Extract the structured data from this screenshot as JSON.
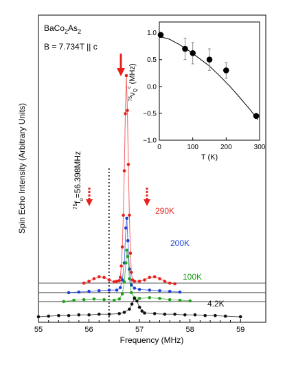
{
  "chart_data": [
    {
      "type": "scatter",
      "xlabel": "Frequency (MHz)",
      "ylabel": "Spin  Echo Intensity (Arbitrary  Units)",
      "xlim": [
        55,
        59.5
      ],
      "xticks": [
        "55",
        "56",
        "57",
        "58",
        "59"
      ],
      "sample": {
        "compound": "BaCo",
        "sub1": "2",
        "mid": "As",
        "sub2": "2"
      },
      "field_label": "B = 7.734T || c",
      "ref_line": {
        "x": 56.398,
        "sup": "75",
        "main": "f",
        "sub": "o",
        "rest": "=56.398MHz"
      },
      "series": [
        {
          "name": "290K",
          "color": "#e8201c",
          "baseline": 0.53,
          "points": [
            [
              55.9,
              0.53
            ],
            [
              56.0,
              0.56
            ],
            [
              56.1,
              0.6
            ],
            [
              56.2,
              0.63
            ],
            [
              56.3,
              0.62
            ],
            [
              56.4,
              0.58
            ],
            [
              56.5,
              0.55
            ],
            [
              56.55,
              0.56
            ],
            [
              56.6,
              0.57
            ],
            [
              56.62,
              0.62
            ],
            [
              56.64,
              0.8
            ],
            [
              56.66,
              1.1
            ],
            [
              56.68,
              1.6
            ],
            [
              56.7,
              2.3
            ],
            [
              56.72,
              3.2
            ],
            [
              56.74,
              3.8
            ],
            [
              56.76,
              3.25
            ],
            [
              56.78,
              2.4
            ],
            [
              56.8,
              1.6
            ],
            [
              56.82,
              1.0
            ],
            [
              56.84,
              0.7
            ],
            [
              56.86,
              0.58
            ],
            [
              56.9,
              0.56
            ],
            [
              57.0,
              0.56
            ],
            [
              57.1,
              0.58
            ],
            [
              57.2,
              0.62
            ],
            [
              57.3,
              0.63
            ],
            [
              57.4,
              0.6
            ],
            [
              57.5,
              0.56
            ],
            [
              57.6,
              0.53
            ],
            [
              57.7,
              0.52
            ]
          ]
        },
        {
          "name": "200K",
          "color": "#1a3fd8",
          "baseline": 0.38,
          "points": [
            [
              55.6,
              0.38
            ],
            [
              55.8,
              0.39
            ],
            [
              56.0,
              0.4
            ],
            [
              56.2,
              0.41
            ],
            [
              56.4,
              0.42
            ],
            [
              56.55,
              0.42
            ],
            [
              56.62,
              0.46
            ],
            [
              56.66,
              0.58
            ],
            [
              56.7,
              0.85
            ],
            [
              56.73,
              1.4
            ],
            [
              56.75,
              1.55
            ],
            [
              56.77,
              1.2
            ],
            [
              56.8,
              0.75
            ],
            [
              56.84,
              0.5
            ],
            [
              56.9,
              0.45
            ],
            [
              57.0,
              0.43
            ],
            [
              57.2,
              0.42
            ],
            [
              57.4,
              0.41
            ],
            [
              57.6,
              0.4
            ],
            [
              57.8,
              0.39
            ]
          ]
        },
        {
          "name": "100K",
          "color": "#22a11c",
          "baseline": 0.24,
          "points": [
            [
              55.5,
              0.24
            ],
            [
              55.7,
              0.26
            ],
            [
              55.9,
              0.27
            ],
            [
              56.1,
              0.28
            ],
            [
              56.3,
              0.27
            ],
            [
              56.5,
              0.26
            ],
            [
              56.6,
              0.28
            ],
            [
              56.66,
              0.36
            ],
            [
              56.7,
              0.55
            ],
            [
              56.73,
              0.85
            ],
            [
              56.75,
              1.05
            ],
            [
              56.77,
              0.95
            ],
            [
              56.8,
              0.6
            ],
            [
              56.84,
              0.38
            ],
            [
              56.9,
              0.3
            ],
            [
              57.0,
              0.29
            ],
            [
              57.2,
              0.3
            ],
            [
              57.4,
              0.29
            ],
            [
              57.6,
              0.27
            ],
            [
              57.8,
              0.26
            ],
            [
              58.0,
              0.25
            ]
          ]
        },
        {
          "name": "4.2K",
          "color": "#111111",
          "baseline": 0.0,
          "points": [
            [
              55.0,
              0.0
            ],
            [
              55.2,
              0.01
            ],
            [
              55.4,
              0.02
            ],
            [
              55.6,
              0.02
            ],
            [
              55.8,
              0.03
            ],
            [
              56.0,
              0.03
            ],
            [
              56.2,
              0.04
            ],
            [
              56.4,
              0.04
            ],
            [
              56.6,
              0.05
            ],
            [
              56.7,
              0.07
            ],
            [
              56.8,
              0.12
            ],
            [
              56.85,
              0.2
            ],
            [
              56.9,
              0.29
            ],
            [
              56.95,
              0.25
            ],
            [
              57.0,
              0.15
            ],
            [
              57.05,
              0.09
            ],
            [
              57.1,
              0.06
            ],
            [
              57.3,
              0.05
            ],
            [
              57.5,
              0.04
            ],
            [
              57.7,
              0.04
            ],
            [
              57.9,
              0.03
            ],
            [
              58.1,
              0.03
            ],
            [
              58.3,
              0.02
            ],
            [
              58.5,
              0.02
            ],
            [
              58.7,
              0.01
            ],
            [
              59.0,
              0.0
            ]
          ]
        }
      ],
      "grid": false
    },
    {
      "type": "scatter",
      "xlabel": "T (K)",
      "ylabel": {
        "sup": "75",
        "main": "ν",
        "sub": "Q",
        "subsup": "c",
        "unit": " (MHz)"
      },
      "xlim": [
        0,
        300
      ],
      "ylim": [
        -1.0,
        1.2
      ],
      "xticks": [
        "0",
        "100",
        "200",
        "300"
      ],
      "yticks": [
        "1.0",
        "0.5",
        "0.0",
        "−0.5",
        "−1.0"
      ],
      "points": [
        {
          "x": 4.2,
          "y": 0.96,
          "err": 0.0
        },
        {
          "x": 77,
          "y": 0.7,
          "err": 0.2
        },
        {
          "x": 100,
          "y": 0.62,
          "err": 0.2
        },
        {
          "x": 150,
          "y": 0.5,
          "err": 0.2
        },
        {
          "x": 200,
          "y": 0.3,
          "err": 0.15
        },
        {
          "x": 290,
          "y": -0.55,
          "err": 0.0
        }
      ],
      "fit_curve": [
        [
          0,
          0.93
        ],
        [
          30,
          0.88
        ],
        [
          60,
          0.78
        ],
        [
          90,
          0.66
        ],
        [
          120,
          0.52
        ],
        [
          150,
          0.38
        ],
        [
          180,
          0.2
        ],
        [
          210,
          0.01
        ],
        [
          240,
          -0.2
        ],
        [
          270,
          -0.42
        ],
        [
          295,
          -0.62
        ]
      ],
      "grid": false
    }
  ]
}
